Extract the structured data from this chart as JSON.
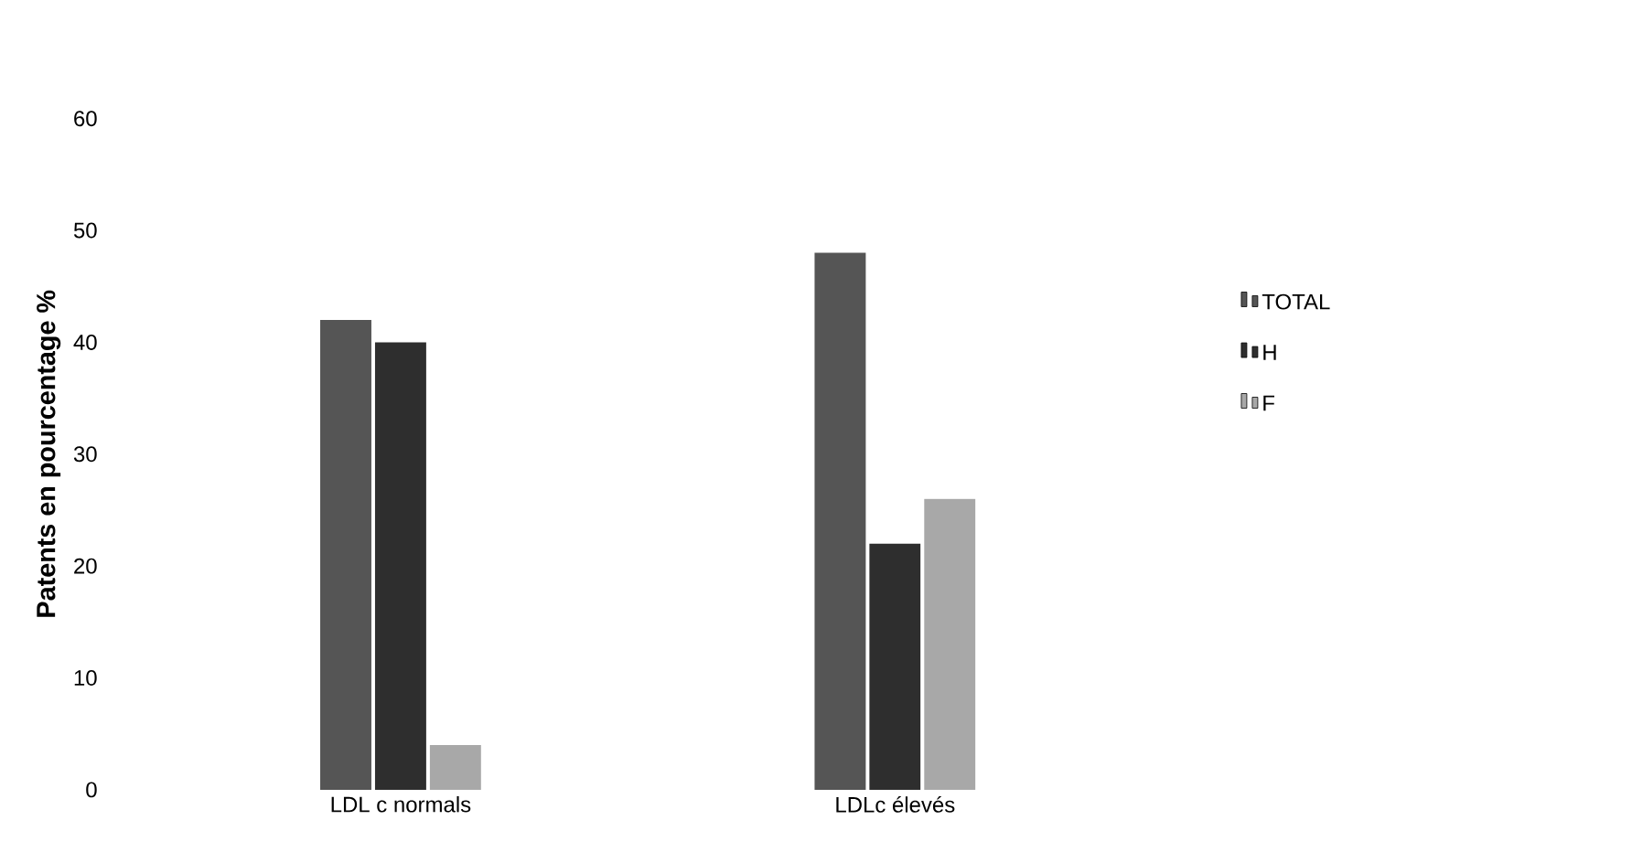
{
  "chart_data": {
    "type": "bar",
    "ylabel": "Patents en pourcentage %",
    "categories": [
      "LDL c normals",
      "LDLc élevés"
    ],
    "series": [
      {
        "name": "TOTAL",
        "color": "#555555",
        "values": [
          42,
          48
        ]
      },
      {
        "name": "H",
        "color": "#2e2e2e",
        "values": [
          40,
          22
        ]
      },
      {
        "name": "F",
        "color": "#a8a8a8",
        "values": [
          4,
          26
        ]
      }
    ],
    "ylim": [
      0,
      60
    ],
    "yticks": [
      0,
      10,
      20,
      30,
      40,
      50,
      60
    ],
    "legend": "right",
    "grid": false
  }
}
